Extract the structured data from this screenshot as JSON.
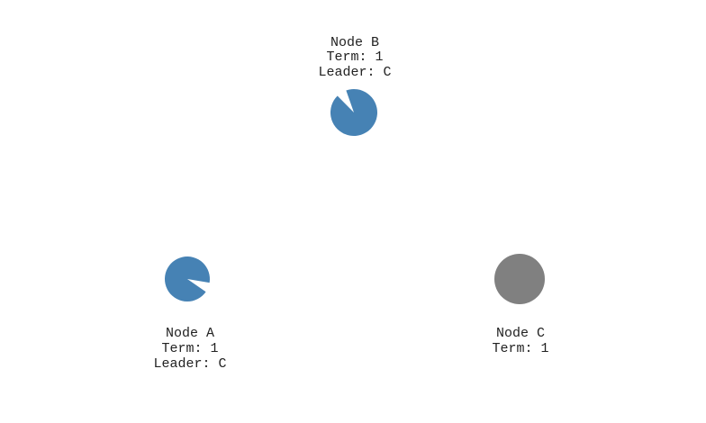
{
  "colors": {
    "follower": "#4682b4",
    "leader": "#808080",
    "text": "#222222"
  },
  "nodes": [
    {
      "id": "A",
      "name": "Node A",
      "term": "Term: 1",
      "leader": "Leader: C",
      "role": "follower",
      "timeout_elapsed": 0.93,
      "icon": "follower-node-circle"
    },
    {
      "id": "B",
      "name": "Node B",
      "term": "Term: 1",
      "leader": "Leader: C",
      "role": "follower",
      "timeout_elapsed": 0.93,
      "icon": "follower-node-circle"
    },
    {
      "id": "C",
      "name": "Node C",
      "term": "Term: 1",
      "leader": "",
      "role": "leader",
      "timeout_elapsed": 1,
      "icon": "leader-node-circle"
    }
  ]
}
